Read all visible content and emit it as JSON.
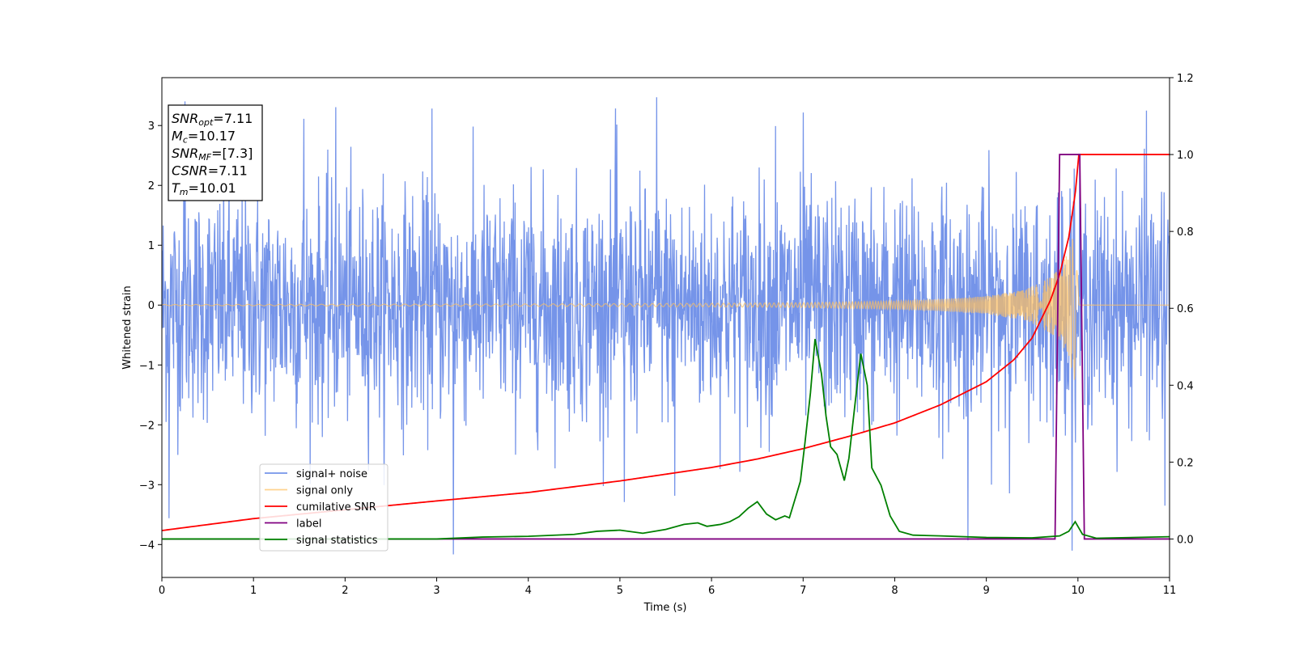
{
  "chart_data": {
    "type": "line",
    "xlabel": "Time (s)",
    "ylabel": "Whitened strain",
    "xlim": [
      0,
      11
    ],
    "ylim_left": [
      -4.55,
      3.8
    ],
    "ylim_right": [
      -0.1,
      1.2
    ],
    "xticks": [
      "0",
      "1",
      "2",
      "3",
      "4",
      "5",
      "6",
      "7",
      "8",
      "9",
      "10",
      "11"
    ],
    "yticks_left": [
      "3",
      "2",
      "1",
      "0",
      "−1",
      "−2",
      "−3",
      "−4"
    ],
    "yticks_left_values": [
      3,
      2,
      1,
      0,
      -1,
      -2,
      -3,
      -4
    ],
    "yticks_right": [
      "1.2",
      "1.0",
      "0.8",
      "0.6",
      "0.4",
      "0.2",
      "0.0"
    ],
    "yticks_right_values": [
      1.2,
      1.0,
      0.8,
      0.6,
      0.4,
      0.2,
      0.0
    ],
    "grid": false,
    "legend_position": "lower-left",
    "info_box": [
      {
        "main": "SNR",
        "sub": "opt",
        "rest": "=7.11"
      },
      {
        "main": "M",
        "sub": "c",
        "rest": "=10.17"
      },
      {
        "main": "SNR",
        "sub": "MF",
        "rest": "=[7.3]"
      },
      {
        "main": "CSNR",
        "sub": "",
        "rest": "=7.11"
      },
      {
        "main": "T",
        "sub": "m",
        "rest": "=10.01"
      }
    ],
    "series": [
      {
        "name": "signal+ noise",
        "axis": "left",
        "color": "#6e8ee8",
        "description_values": "noise band roughly between -2.5 and 2.5 with spikes to about -4.2 and 3.45",
        "peaks": [
          {
            "x": 0.25,
            "y": 3.4
          },
          {
            "x": 0.08,
            "y": -3.55
          },
          {
            "x": 1.55,
            "y": 3.1
          },
          {
            "x": 1.9,
            "y": 3.3
          },
          {
            "x": 2.95,
            "y": 3.3
          },
          {
            "x": 3.18,
            "y": -4.15
          },
          {
            "x": 4.95,
            "y": 3.3
          },
          {
            "x": 5.05,
            "y": -3.3
          },
          {
            "x": 5.4,
            "y": 3.45
          },
          {
            "x": 5.6,
            "y": -3.2
          },
          {
            "x": 6.7,
            "y": 3.0
          },
          {
            "x": 7.0,
            "y": 3.2
          },
          {
            "x": 8.8,
            "y": -4.05
          },
          {
            "x": 10.75,
            "y": 3.25
          },
          {
            "x": 10.95,
            "y": -3.35
          }
        ]
      },
      {
        "name": "signal only",
        "axis": "left",
        "color": "#ffc060",
        "envelope": [
          {
            "x": 0.0,
            "y": 0.01
          },
          {
            "x": 2.0,
            "y": 0.015
          },
          {
            "x": 4.0,
            "y": 0.02
          },
          {
            "x": 6.0,
            "y": 0.03
          },
          {
            "x": 7.0,
            "y": 0.04
          },
          {
            "x": 8.0,
            "y": 0.07
          },
          {
            "x": 8.5,
            "y": 0.1
          },
          {
            "x": 9.0,
            "y": 0.15
          },
          {
            "x": 9.4,
            "y": 0.25
          },
          {
            "x": 9.6,
            "y": 0.38
          },
          {
            "x": 9.8,
            "y": 0.6
          },
          {
            "x": 9.9,
            "y": 0.9
          },
          {
            "x": 9.97,
            "y": 1.3
          },
          {
            "x": 10.01,
            "y": 0.0
          },
          {
            "x": 11.0,
            "y": 0.0
          }
        ]
      },
      {
        "name": "cumilative SNR",
        "axis": "right",
        "color": "#ff0000",
        "points": [
          {
            "x": 0.0,
            "y": 0.022
          },
          {
            "x": 1.0,
            "y": 0.053
          },
          {
            "x": 2.0,
            "y": 0.076
          },
          {
            "x": 3.0,
            "y": 0.099
          },
          {
            "x": 4.0,
            "y": 0.121
          },
          {
            "x": 5.0,
            "y": 0.151
          },
          {
            "x": 6.0,
            "y": 0.186
          },
          {
            "x": 6.5,
            "y": 0.208
          },
          {
            "x": 7.0,
            "y": 0.235
          },
          {
            "x": 7.5,
            "y": 0.267
          },
          {
            "x": 8.0,
            "y": 0.302
          },
          {
            "x": 8.5,
            "y": 0.349
          },
          {
            "x": 9.0,
            "y": 0.409
          },
          {
            "x": 9.3,
            "y": 0.466
          },
          {
            "x": 9.5,
            "y": 0.523
          },
          {
            "x": 9.7,
            "y": 0.621
          },
          {
            "x": 9.8,
            "y": 0.688
          },
          {
            "x": 9.9,
            "y": 0.785
          },
          {
            "x": 9.97,
            "y": 0.897
          },
          {
            "x": 10.01,
            "y": 1.0
          },
          {
            "x": 11.0,
            "y": 1.0
          }
        ]
      },
      {
        "name": "label",
        "axis": "right",
        "color": "#800080",
        "points": [
          {
            "x": 0.0,
            "y": 0.0
          },
          {
            "x": 9.75,
            "y": 0.0
          },
          {
            "x": 9.8,
            "y": 1.0
          },
          {
            "x": 10.02,
            "y": 1.0
          },
          {
            "x": 10.07,
            "y": 0.0
          },
          {
            "x": 11.0,
            "y": 0.0
          }
        ]
      },
      {
        "name": "signal statistics",
        "axis": "right",
        "color": "#008000",
        "points": [
          {
            "x": 0.0,
            "y": 0.0
          },
          {
            "x": 2.0,
            "y": 0.0
          },
          {
            "x": 3.0,
            "y": 0.0
          },
          {
            "x": 3.5,
            "y": 0.005
          },
          {
            "x": 4.0,
            "y": 0.007
          },
          {
            "x": 4.5,
            "y": 0.012
          },
          {
            "x": 4.75,
            "y": 0.02
          },
          {
            "x": 5.0,
            "y": 0.023
          },
          {
            "x": 5.25,
            "y": 0.015
          },
          {
            "x": 5.5,
            "y": 0.025
          },
          {
            "x": 5.7,
            "y": 0.038
          },
          {
            "x": 5.85,
            "y": 0.042
          },
          {
            "x": 5.95,
            "y": 0.033
          },
          {
            "x": 6.1,
            "y": 0.038
          },
          {
            "x": 6.2,
            "y": 0.045
          },
          {
            "x": 6.3,
            "y": 0.058
          },
          {
            "x": 6.4,
            "y": 0.08
          },
          {
            "x": 6.5,
            "y": 0.097
          },
          {
            "x": 6.6,
            "y": 0.065
          },
          {
            "x": 6.7,
            "y": 0.05
          },
          {
            "x": 6.8,
            "y": 0.06
          },
          {
            "x": 6.85,
            "y": 0.055
          },
          {
            "x": 6.92,
            "y": 0.11
          },
          {
            "x": 6.97,
            "y": 0.15
          },
          {
            "x": 7.02,
            "y": 0.25
          },
          {
            "x": 7.08,
            "y": 0.38
          },
          {
            "x": 7.13,
            "y": 0.52
          },
          {
            "x": 7.2,
            "y": 0.43
          },
          {
            "x": 7.25,
            "y": 0.32
          },
          {
            "x": 7.3,
            "y": 0.24
          },
          {
            "x": 7.37,
            "y": 0.22
          },
          {
            "x": 7.45,
            "y": 0.152
          },
          {
            "x": 7.5,
            "y": 0.21
          },
          {
            "x": 7.58,
            "y": 0.38
          },
          {
            "x": 7.63,
            "y": 0.482
          },
          {
            "x": 7.7,
            "y": 0.4
          },
          {
            "x": 7.75,
            "y": 0.185
          },
          {
            "x": 7.85,
            "y": 0.14
          },
          {
            "x": 7.95,
            "y": 0.06
          },
          {
            "x": 8.05,
            "y": 0.02
          },
          {
            "x": 8.2,
            "y": 0.01
          },
          {
            "x": 8.5,
            "y": 0.008
          },
          {
            "x": 9.0,
            "y": 0.004
          },
          {
            "x": 9.5,
            "y": 0.003
          },
          {
            "x": 9.8,
            "y": 0.008
          },
          {
            "x": 9.9,
            "y": 0.02
          },
          {
            "x": 9.97,
            "y": 0.045
          },
          {
            "x": 10.05,
            "y": 0.012
          },
          {
            "x": 10.2,
            "y": 0.002
          },
          {
            "x": 11.0,
            "y": 0.006
          }
        ]
      }
    ]
  }
}
